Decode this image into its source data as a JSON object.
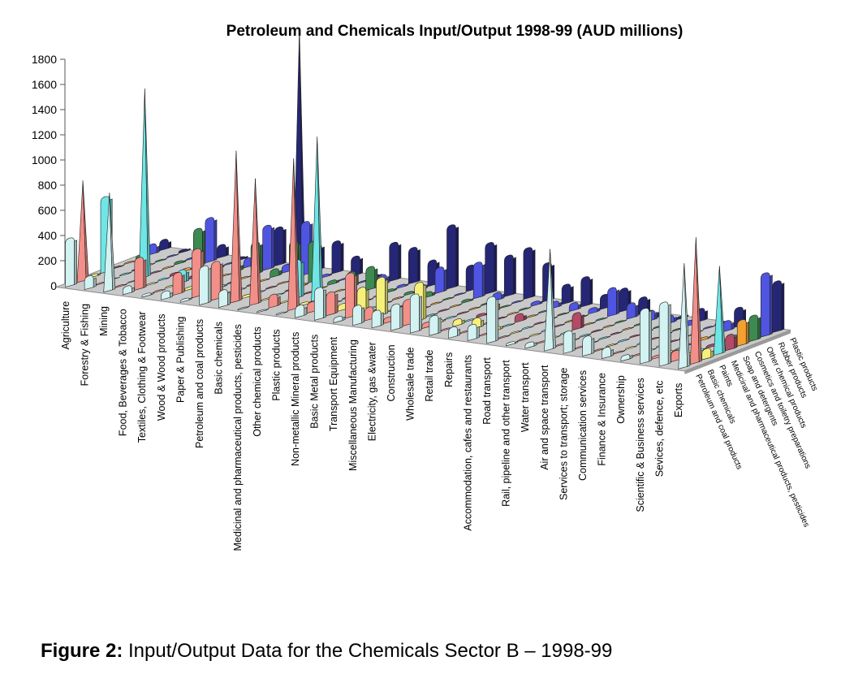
{
  "caption": {
    "label": "Figure 2:",
    "text": "Input/Output Data for the Chemicals Sector B – 1998-99"
  },
  "chart_data": {
    "type": "bar",
    "subtype": "3d-ribbon-peaks",
    "title": "Petroleum and Chemicals Input/Output 1998-99 (AUD millions)",
    "ylim": [
      0,
      1800
    ],
    "yticks": [
      0,
      200,
      400,
      600,
      800,
      1000,
      1200,
      1400,
      1600,
      1800
    ],
    "grid": false,
    "legend": "none",
    "categories": [
      "Agriculture",
      "Forestry & Fishing",
      "Mining",
      "Food, Beverages & Tobacco",
      "Textiles, Clothing & Footwear",
      "Wood & Wood products",
      "Paper & Publishing",
      "Petroleum and coal products",
      "Basic chemicals",
      "Medicinal and pharmaceutical products, pesticides",
      "Other chemical products",
      "Plastic products",
      "Non-metallic Mineral products",
      "Basic Metal products",
      "Transport Equipment",
      "Miscellaneous Manufacturing",
      "Electricity, gas &water",
      "Construction",
      "Wholesale trade",
      "Retail trade",
      "Repairs",
      "Accommodation, cafes and restaurants",
      "Road transport",
      "Rail, pipeline and other transport",
      "Water transport",
      "Air and space transport",
      "Services to transport; storage",
      "Communication services",
      "Finance & Insurance",
      "Ownership",
      "Scientific & Business services",
      "Sevices, defence, etc",
      "Exports"
    ],
    "depth_labels": [
      "Petroleum and coal products",
      "Basic chemicals",
      "Paints",
      "Medicinal and pharmaceutical products, pesticides",
      "Soap and detergents",
      "Cosmetics and toiletry preparations",
      "Other chemical products",
      "Rubber products",
      "Plastic products"
    ],
    "series": [
      {
        "name": "Petroleum and coal products",
        "color": "#d3f2f2",
        "values": [
          380,
          100,
          780,
          60,
          20,
          60,
          20,
          300,
          130,
          10,
          10,
          10,
          90,
          250,
          40,
          150,
          130,
          200,
          300,
          150,
          80,
          120,
          360,
          20,
          40,
          800,
          170,
          150,
          80,
          40,
          430,
          500,
          830
        ]
      },
      {
        "name": "Basic chemicals",
        "color": "#f28f88",
        "values": [
          800,
          10,
          10,
          250,
          10,
          170,
          380,
          300,
          1200,
          1000,
          100,
          1200,
          80,
          180,
          350,
          100,
          40,
          200,
          40,
          10,
          10,
          10,
          10,
          10,
          10,
          10,
          10,
          10,
          10,
          10,
          20,
          80,
          1000
        ]
      },
      {
        "name": "Paints",
        "color": "#f5f07a",
        "values": [
          20,
          5,
          5,
          10,
          10,
          20,
          30,
          20,
          20,
          10,
          10,
          20,
          20,
          50,
          200,
          300,
          10,
          300,
          20,
          50,
          80,
          30,
          10,
          10,
          10,
          10,
          10,
          10,
          10,
          10,
          20,
          20,
          80
        ]
      },
      {
        "name": "Medicinal and pharmaceutical products, pesticides",
        "color": "#6ee6e6",
        "values": [
          600,
          10,
          1500,
          10,
          100,
          10,
          20,
          10,
          10,
          10,
          300,
          1300,
          10,
          10,
          10,
          10,
          10,
          10,
          10,
          10,
          10,
          10,
          10,
          10,
          10,
          10,
          10,
          10,
          10,
          10,
          10,
          20,
          700
        ]
      },
      {
        "name": "Soap and detergents",
        "color": "#b34a68",
        "values": [
          10,
          10,
          10,
          20,
          20,
          10,
          10,
          10,
          10,
          10,
          10,
          10,
          10,
          10,
          10,
          10,
          10,
          10,
          10,
          20,
          10,
          60,
          10,
          10,
          130,
          10,
          10,
          10,
          10,
          10,
          10,
          20,
          120
        ]
      },
      {
        "name": "Cosmetics and toiletry preparations",
        "color": "#f2a030",
        "values": [
          10,
          10,
          10,
          20,
          10,
          10,
          10,
          10,
          10,
          20,
          10,
          10,
          10,
          10,
          10,
          10,
          10,
          10,
          10,
          80,
          10,
          10,
          10,
          10,
          10,
          10,
          10,
          10,
          10,
          10,
          20,
          20,
          200
        ]
      },
      {
        "name": "Other chemical products",
        "color": "#3d8a50",
        "values": [
          30,
          10,
          20,
          300,
          20,
          60,
          250,
          60,
          300,
          320,
          30,
          120,
          180,
          20,
          20,
          40,
          10,
          20,
          10,
          10,
          10,
          10,
          10,
          10,
          10,
          10,
          10,
          10,
          10,
          10,
          10,
          20,
          200
        ]
      },
      {
        "name": "Rubber products",
        "color": "#4f55e0",
        "values": [
          80,
          10,
          10,
          350,
          10,
          70,
          350,
          60,
          420,
          20,
          10,
          10,
          80,
          20,
          40,
          200,
          10,
          280,
          60,
          10,
          30,
          50,
          60,
          40,
          220,
          120,
          80,
          60,
          40,
          10,
          80,
          40,
          500
        ]
      },
      {
        "name": "Plastic products",
        "color": "#262676",
        "values": [
          80,
          20,
          10,
          100,
          20,
          50,
          300,
          1900,
          200,
          250,
          150,
          20,
          300,
          280,
          200,
          500,
          200,
          400,
          320,
          400,
          300,
          150,
          230,
          110,
          180,
          130,
          40,
          20,
          100,
          10,
          150,
          80,
          400
        ]
      }
    ]
  }
}
